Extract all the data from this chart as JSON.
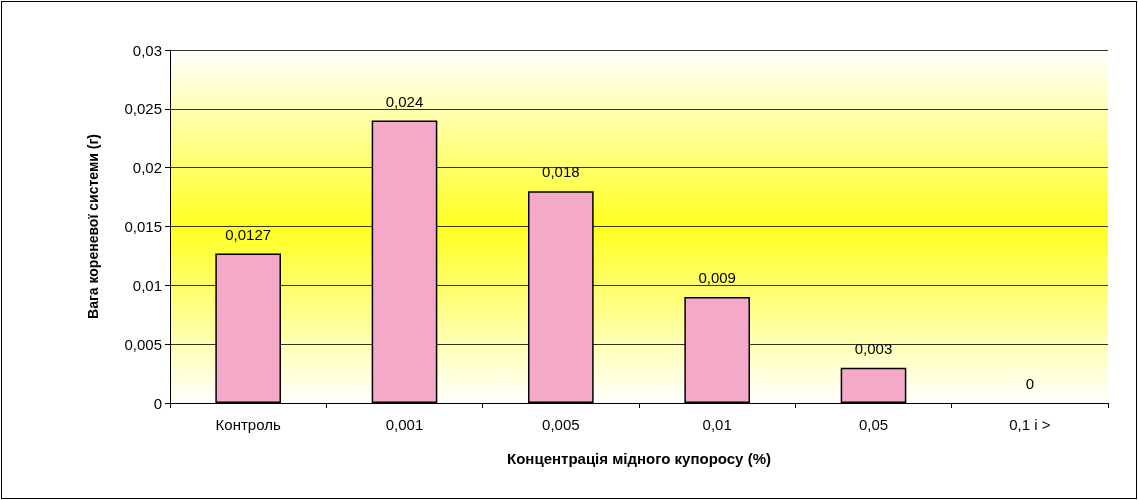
{
  "chart_data": {
    "type": "bar",
    "xlabel": "Концентрація мідного купоросу (%)",
    "ylabel": "Вага кореневої системи (г)",
    "categories": [
      "Контроль",
      "0,001",
      "0,005",
      "0,01",
      "0,05",
      "0,1 і >"
    ],
    "values": [
      0.0127,
      0.024,
      0.018,
      0.009,
      0.003,
      0
    ],
    "color": "#f4a9c8",
    "value_labels": [
      "0,0127",
      "0,024",
      "0,018",
      "0,009",
      "0,003",
      "0"
    ],
    "ylim": [
      0,
      0.03
    ],
    "yticks": [
      0,
      {
        "value": 0.005,
        "label": "0,005"
      },
      {
        "value": 0.01,
        "label": "0,01"
      },
      {
        "value": 0.015,
        "label": "0,015"
      },
      {
        "value": 0.02,
        "label": "0,02"
      },
      {
        "value": 0.025,
        "label": "0,025"
      },
      {
        "value": 0.03,
        "label": "0,03"
      }
    ],
    "grid": "y"
  }
}
